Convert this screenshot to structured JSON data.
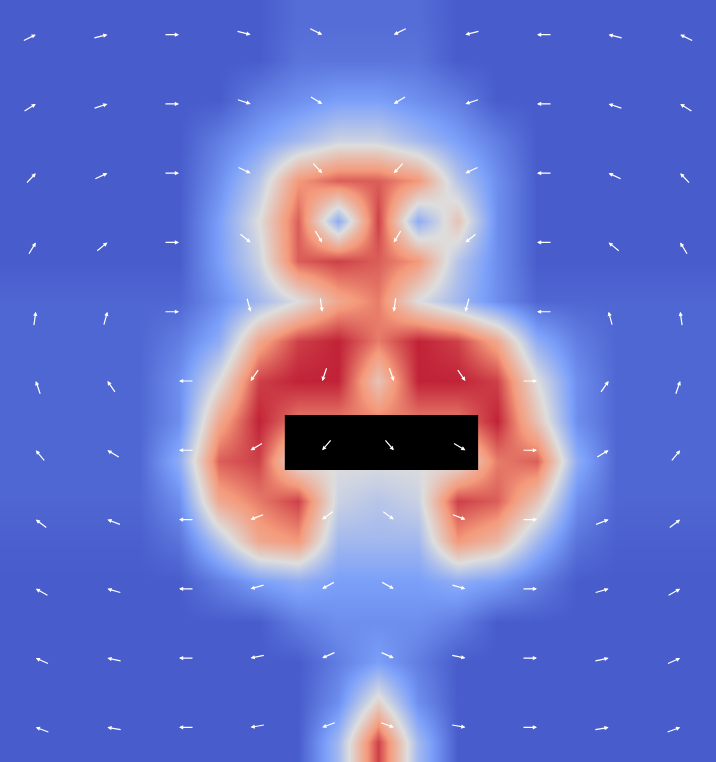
{
  "chart_data": {
    "type": "heatmap",
    "tick_labels": false,
    "zlim": [
      0,
      1
    ],
    "cells": [
      [
        0.05,
        0.05,
        0.05,
        0.05,
        0.05,
        0.05,
        0.05,
        0.1,
        0.1,
        0.1,
        0.1,
        0.05,
        0.05,
        0.05,
        0.05,
        0.05,
        0.05,
        0.05
      ],
      [
        0.05,
        0.05,
        0.05,
        0.05,
        0.05,
        0.05,
        0.05,
        0.12,
        0.12,
        0.12,
        0.12,
        0.05,
        0.05,
        0.05,
        0.05,
        0.05,
        0.05,
        0.05
      ],
      [
        0.05,
        0.05,
        0.05,
        0.05,
        0.05,
        0.05,
        0.15,
        0.2,
        0.25,
        0.25,
        0.2,
        0.15,
        0.05,
        0.05,
        0.05,
        0.05,
        0.05,
        0.05
      ],
      [
        0.05,
        0.05,
        0.05,
        0.05,
        0.05,
        0.15,
        0.25,
        0.35,
        0.45,
        0.45,
        0.35,
        0.25,
        0.15,
        0.05,
        0.05,
        0.05,
        0.05,
        0.05
      ],
      [
        0.05,
        0.05,
        0.05,
        0.05,
        0.05,
        0.2,
        0.4,
        0.75,
        0.85,
        0.85,
        0.75,
        0.4,
        0.2,
        0.05,
        0.05,
        0.05,
        0.05,
        0.05
      ],
      [
        0.05,
        0.05,
        0.05,
        0.05,
        0.05,
        0.25,
        0.5,
        0.85,
        0.3,
        0.9,
        0.3,
        0.6,
        0.2,
        0.05,
        0.05,
        0.05,
        0.05,
        0.05
      ],
      [
        0.05,
        0.05,
        0.05,
        0.05,
        0.05,
        0.25,
        0.45,
        0.85,
        0.9,
        0.85,
        0.75,
        0.4,
        0.2,
        0.05,
        0.05,
        0.05,
        0.05,
        0.05
      ],
      [
        0.08,
        0.08,
        0.08,
        0.08,
        0.08,
        0.2,
        0.35,
        0.5,
        0.7,
        0.8,
        0.5,
        0.35,
        0.2,
        0.08,
        0.08,
        0.08,
        0.08,
        0.08
      ],
      [
        0.08,
        0.08,
        0.08,
        0.08,
        0.15,
        0.3,
        0.7,
        0.9,
        0.95,
        0.8,
        0.95,
        0.9,
        0.7,
        0.3,
        0.15,
        0.08,
        0.08,
        0.08
      ],
      [
        0.08,
        0.08,
        0.08,
        0.08,
        0.2,
        0.5,
        0.9,
        0.95,
        0.95,
        0.6,
        0.95,
        0.95,
        0.9,
        0.5,
        0.2,
        0.08,
        0.08,
        0.08
      ],
      [
        0.08,
        0.08,
        0.08,
        0.08,
        0.2,
        0.7,
        0.95,
        0.8,
        0.8,
        0.8,
        0.8,
        0.8,
        0.95,
        0.6,
        0.2,
        0.08,
        0.08,
        0.08
      ],
      [
        0.08,
        0.08,
        0.08,
        0.08,
        0.3,
        0.85,
        0.9,
        0.5,
        0.5,
        0.5,
        0.5,
        0.5,
        0.8,
        0.85,
        0.3,
        0.08,
        0.08,
        0.08
      ],
      [
        0.08,
        0.08,
        0.08,
        0.08,
        0.2,
        0.7,
        0.8,
        0.9,
        0.45,
        0.4,
        0.45,
        0.9,
        0.85,
        0.6,
        0.2,
        0.08,
        0.08,
        0.08
      ],
      [
        0.06,
        0.06,
        0.06,
        0.06,
        0.12,
        0.4,
        0.7,
        0.75,
        0.35,
        0.35,
        0.35,
        0.75,
        0.65,
        0.35,
        0.12,
        0.06,
        0.06,
        0.06
      ],
      [
        0.05,
        0.05,
        0.05,
        0.05,
        0.05,
        0.15,
        0.25,
        0.3,
        0.25,
        0.25,
        0.25,
        0.3,
        0.25,
        0.15,
        0.05,
        0.05,
        0.05,
        0.05
      ],
      [
        0.05,
        0.05,
        0.05,
        0.05,
        0.05,
        0.05,
        0.05,
        0.15,
        0.2,
        0.2,
        0.2,
        0.15,
        0.05,
        0.05,
        0.05,
        0.05,
        0.05,
        0.05
      ],
      [
        0.05,
        0.05,
        0.05,
        0.05,
        0.05,
        0.05,
        0.05,
        0.05,
        0.15,
        0.25,
        0.15,
        0.05,
        0.05,
        0.05,
        0.05,
        0.05,
        0.05,
        0.05
      ],
      [
        0.05,
        0.05,
        0.05,
        0.05,
        0.05,
        0.05,
        0.05,
        0.05,
        0.2,
        0.55,
        0.2,
        0.05,
        0.05,
        0.05,
        0.05,
        0.05,
        0.05,
        0.05
      ],
      [
        0.05,
        0.05,
        0.05,
        0.05,
        0.05,
        0.05,
        0.05,
        0.05,
        0.35,
        0.9,
        0.35,
        0.05,
        0.05,
        0.05,
        0.05,
        0.05,
        0.05,
        0.05
      ]
    ],
    "vectors": {
      "color": "#ffffff",
      "angles": [
        [
          26,
          14,
          0,
          -14,
          -26,
          -154,
          -166,
          180,
          166,
          154
        ],
        [
          32,
          18,
          0,
          -18,
          -32,
          -148,
          -162,
          180,
          162,
          148
        ],
        [
          47,
          25,
          0,
          -25,
          -47,
          -133,
          -155,
          180,
          155,
          133
        ],
        [
          59,
          39,
          0,
          -39,
          -59,
          -121,
          -141,
          180,
          141,
          121
        ],
        [
          82,
          75,
          0,
          -75,
          -82,
          -98,
          -105,
          180,
          105,
          98
        ],
        [
          109,
          125,
          180,
          -125,
          -109,
          -71,
          -55,
          0,
          55,
          71
        ],
        [
          130,
          149,
          180,
          -149,
          -130,
          -50,
          -31,
          0,
          31,
          50
        ],
        [
          143,
          159,
          180,
          -159,
          -143,
          -37,
          -21,
          0,
          21,
          37
        ],
        [
          151,
          164,
          180,
          -164,
          -151,
          -29,
          -16,
          0,
          16,
          29
        ],
        [
          156,
          168,
          180,
          -168,
          -156,
          -24,
          -12,
          0,
          12,
          24
        ],
        [
          160,
          170,
          180,
          -170,
          -160,
          -20,
          -10,
          0,
          10,
          20
        ]
      ]
    },
    "obstacle": {
      "x": [
        6.66,
        11.52
      ],
      "y": [
        9.85,
        11.22
      ],
      "color": "#000000"
    }
  }
}
